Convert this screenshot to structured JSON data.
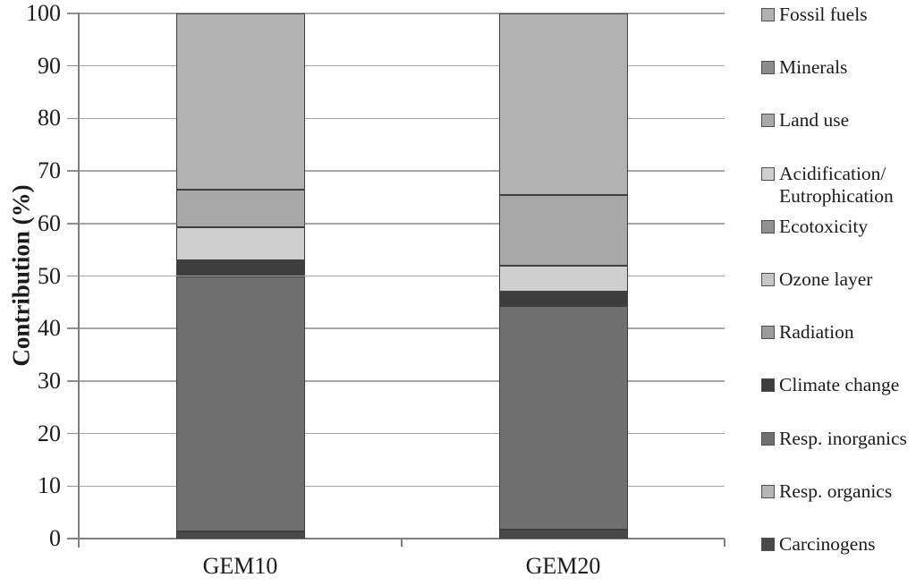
{
  "chart_data": {
    "type": "bar",
    "stacked": true,
    "title": "",
    "xlabel": "",
    "ylabel": "Contribution (%)",
    "ylim": [
      0,
      100
    ],
    "yticks": [
      0,
      10,
      20,
      30,
      40,
      50,
      60,
      70,
      80,
      90,
      100
    ],
    "grid": true,
    "legend_position": "right",
    "categories": [
      "GEM10",
      "GEM20"
    ],
    "series": [
      {
        "name": "Carcinogens",
        "color": "#4a4a4a",
        "values": [
          1.3,
          1.7
        ]
      },
      {
        "name": "Resp. organics",
        "color": "#b5b5b5",
        "values": [
          0,
          0
        ]
      },
      {
        "name": "Resp. inorganics",
        "color": "#6f6f6f",
        "values": [
          48.7,
          42.6
        ]
      },
      {
        "name": "Climate change",
        "color": "#3d3d3d",
        "values": [
          3.0,
          2.7
        ]
      },
      {
        "name": "Radiation",
        "color": "#9c9c9c",
        "values": [
          0,
          0
        ]
      },
      {
        "name": "Ozone layer",
        "color": "#c6c6c6",
        "values": [
          0,
          0
        ]
      },
      {
        "name": "Ecotoxicity",
        "color": "#919191",
        "values": [
          0,
          0
        ]
      },
      {
        "name": "Acidification/Eutrophication",
        "color": "#cecece",
        "values": [
          6.2,
          5.0
        ],
        "legend_lines": [
          "Acidification/",
          "Eutrophication"
        ]
      },
      {
        "name": "Land use",
        "color": "#a8a8a8",
        "values": [
          7.3,
          13.4
        ]
      },
      {
        "name": "Minerals",
        "color": "#8c8c8c",
        "values": [
          0,
          0
        ]
      },
      {
        "name": "Fossil fuels",
        "color": "#b2b2b2",
        "values": [
          33.5,
          34.6
        ]
      }
    ],
    "style_colors": {
      "background": "#ffffff",
      "gridline": "#a6a6a6",
      "axis": "#7f7f7f",
      "segment_border": "#3f3f3f",
      "legend_swatch_border": "#4f4f4f",
      "text": "#1b1b1b"
    }
  }
}
